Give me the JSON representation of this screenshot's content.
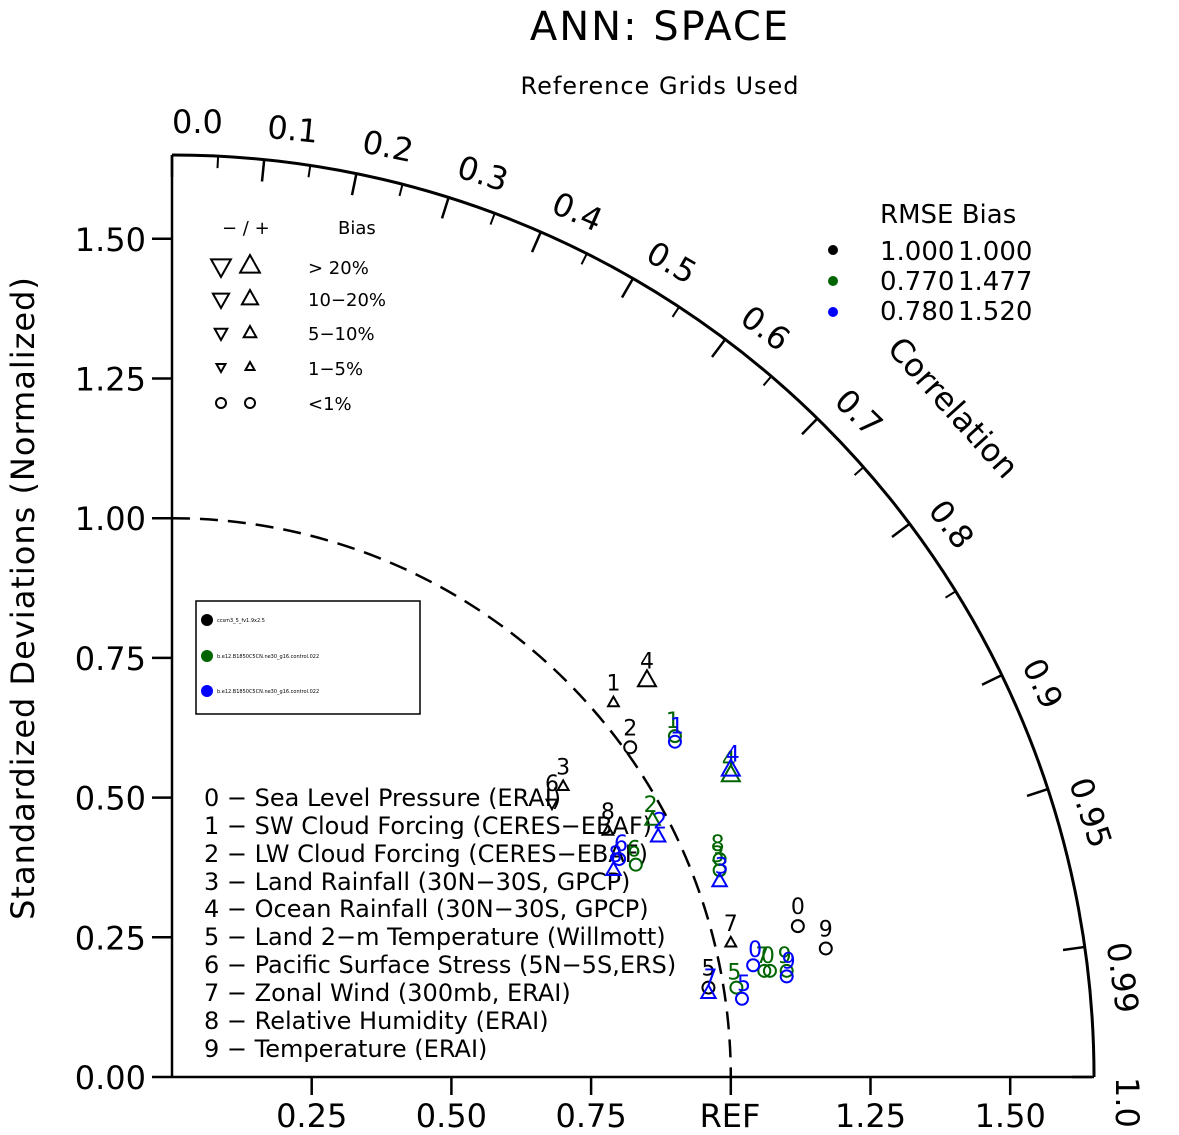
{
  "title": "ANN: SPACE",
  "subtitle": "Reference Grids Used",
  "ylabel": "Standardized Deviations (Normalized)",
  "correlation_label": "Correlation",
  "ref_label": "REF",
  "correlation_ticks": [
    "0.0",
    "0.1",
    "0.2",
    "0.3",
    "0.4",
    "0.5",
    "0.6",
    "0.7",
    "0.8",
    "0.9",
    "0.95",
    "0.99",
    "1.0"
  ],
  "correlation_values": [
    0.0,
    0.1,
    0.2,
    0.3,
    0.4,
    0.5,
    0.6,
    0.7,
    0.8,
    0.9,
    0.95,
    0.99,
    1.0
  ],
  "y_ticks": [
    "0.00",
    "0.25",
    "0.50",
    "0.75",
    "1.00",
    "1.25",
    "1.50"
  ],
  "x_ticks": [
    "0.25",
    "0.50",
    "0.75",
    "1.25",
    "1.50"
  ],
  "bias_legend": {
    "header": "− / +",
    "header_bias": "Bias",
    "rows": [
      "> 20%",
      "10−20%",
      "5−10%",
      "1−5%",
      "<1%"
    ]
  },
  "rmse_legend": {
    "header": "RMSE  Bias",
    "rows": [
      {
        "rmse": "1.000",
        "bias": "1.000",
        "color": "#000000"
      },
      {
        "rmse": "0.770",
        "bias": "1.477",
        "color": "#006400"
      },
      {
        "rmse": "0.780",
        "bias": "1.520",
        "color": "#0000ff"
      }
    ]
  },
  "cases": [
    {
      "name": "ccsm3_5_fv1.9x2.5",
      "color": "#000000"
    },
    {
      "name": "b.e12.B1850C5CN.ne30_g16.control.022",
      "color": "#006400"
    },
    {
      "name": "b.e12.B1850C5CN.ne30_g16.control.022",
      "color": "#0000ff"
    }
  ],
  "variables": [
    "0 − Sea Level Pressure (ERAI)",
    "1 − SW Cloud Forcing (CERES−EBAF)",
    "2 − LW Cloud Forcing (CERES−EBAF)",
    "3 − Land Rainfall (30N−30S, GPCP)",
    "4 − Ocean Rainfall (30N−30S, GPCP)",
    "5 − Land 2−m Temperature (Willmott)",
    "6 − Pacific Surface Stress (5N−5S,ERS)",
    "7 − Zonal Wind (300mb, ERAI)",
    "8 − Relative Humidity (ERAI)",
    "9 − Temperature (ERAI)"
  ],
  "chart_data": {
    "type": "scatter",
    "subtype": "taylor_diagram",
    "title": "ANN: SPACE",
    "subtitle": "Reference Grids Used",
    "ylabel": "Standardized Deviations (Normalized)",
    "xlim": [
      0,
      1.65
    ],
    "ylim": [
      0,
      1.65
    ],
    "series": [
      {
        "name": "ccsm3_5_fv1.9x2.5",
        "color": "#000000",
        "points": [
          {
            "label": "0",
            "x": 1.12,
            "y": 0.27,
            "marker": "circle",
            "size": 1
          },
          {
            "label": "1",
            "x": 0.79,
            "y": 0.67,
            "marker": "triangle-up",
            "size": 2
          },
          {
            "label": "2",
            "x": 0.82,
            "y": 0.59,
            "marker": "circle",
            "size": 1
          },
          {
            "label": "3",
            "x": 0.7,
            "y": 0.52,
            "marker": "triangle-up",
            "size": 2
          },
          {
            "label": "4",
            "x": 0.85,
            "y": 0.71,
            "marker": "triangle-up",
            "size": 4
          },
          {
            "label": "5",
            "x": 0.96,
            "y": 0.16,
            "marker": "circle",
            "size": 1
          },
          {
            "label": "6",
            "x": 0.68,
            "y": 0.49,
            "marker": "triangle-down",
            "size": 2
          },
          {
            "label": "7",
            "x": 1.0,
            "y": 0.24,
            "marker": "triangle-up",
            "size": 2
          },
          {
            "label": "8",
            "x": 0.78,
            "y": 0.44,
            "marker": "triangle-up",
            "size": 2
          },
          {
            "label": "9",
            "x": 1.17,
            "y": 0.23,
            "marker": "circle",
            "size": 1
          }
        ]
      },
      {
        "name": "b.e12.B1850C5CN.ne30_g16.control.022",
        "color": "#006400",
        "points": [
          {
            "label": "0",
            "x": 1.07,
            "y": 0.19,
            "marker": "circle",
            "size": 1
          },
          {
            "label": "1",
            "x": 0.9,
            "y": 0.61,
            "marker": "circle",
            "size": 1
          },
          {
            "label": "2",
            "x": 0.86,
            "y": 0.46,
            "marker": "triangle-up",
            "size": 3
          },
          {
            "label": "3",
            "x": 0.98,
            "y": 0.37,
            "marker": "circle",
            "size": 1
          },
          {
            "label": "4",
            "x": 1.0,
            "y": 0.54,
            "marker": "triangle-up",
            "size": 4
          },
          {
            "label": "5",
            "x": 1.01,
            "y": 0.16,
            "marker": "circle",
            "size": 1
          },
          {
            "label": "6",
            "x": 0.83,
            "y": 0.38,
            "marker": "circle",
            "size": 1
          },
          {
            "label": "7",
            "x": 1.06,
            "y": 0.19,
            "marker": "circle",
            "size": 1
          },
          {
            "label": "8",
            "x": 0.98,
            "y": 0.39,
            "marker": "circle",
            "size": 1
          },
          {
            "label": "9",
            "x": 1.1,
            "y": 0.19,
            "marker": "circle",
            "size": 1
          }
        ]
      },
      {
        "name": "b.e12.B1850C5CN.ne30_g16.control.022",
        "color": "#0000ff",
        "points": [
          {
            "label": "0",
            "x": 1.04,
            "y": 0.2,
            "marker": "circle",
            "size": 1
          },
          {
            "label": "1",
            "x": 0.9,
            "y": 0.6,
            "marker": "circle",
            "size": 1
          },
          {
            "label": "2",
            "x": 0.87,
            "y": 0.43,
            "marker": "triangle-up",
            "size": 3
          },
          {
            "label": "3",
            "x": 0.98,
            "y": 0.35,
            "marker": "triangle-up",
            "size": 3
          },
          {
            "label": "4",
            "x": 1.0,
            "y": 0.55,
            "marker": "triangle-up",
            "size": 4
          },
          {
            "label": "5",
            "x": 1.02,
            "y": 0.14,
            "marker": "circle",
            "size": 1
          },
          {
            "label": "6",
            "x": 0.8,
            "y": 0.39,
            "marker": "circle",
            "size": 1
          },
          {
            "label": "7",
            "x": 0.96,
            "y": 0.15,
            "marker": "triangle-up",
            "size": 3
          },
          {
            "label": "8",
            "x": 0.79,
            "y": 0.37,
            "marker": "triangle-up",
            "size": 3
          },
          {
            "label": "9",
            "x": 1.1,
            "y": 0.18,
            "marker": "circle",
            "size": 1
          }
        ]
      }
    ],
    "reference": {
      "std": 1.0,
      "label": "REF"
    },
    "grid": false,
    "legend_position": "top-right"
  }
}
